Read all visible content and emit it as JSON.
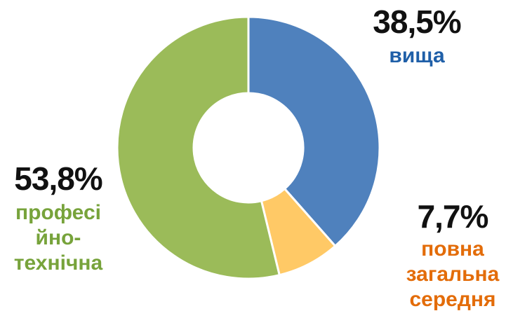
{
  "chart_data": {
    "type": "pie",
    "donut": true,
    "slices": [
      {
        "label": "вища",
        "value": 38.5,
        "value_label": "38,5%",
        "color": "#4F81BD",
        "label_color": "#1F5FA8"
      },
      {
        "label": "повна\nзагальна\nсередня",
        "value": 7.7,
        "value_label": "7,7%",
        "color": "#FFC966",
        "label_color": "#E36C09"
      },
      {
        "label": "професі\nйно-\nтехнічна",
        "value": 53.8,
        "value_label": "53,8%",
        "color": "#9BBB59",
        "label_color": "#77A33B"
      }
    ],
    "legend": "none"
  }
}
